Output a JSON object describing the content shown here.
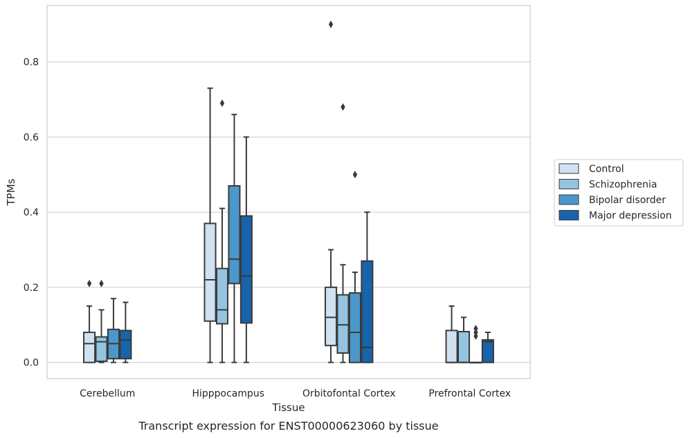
{
  "chart_data": {
    "type": "box",
    "title": "",
    "caption": "Transcript expression for ENST00000623060 by tissue",
    "xlabel": "Tissue",
    "ylabel": "TPMs",
    "ylim": [
      -0.043,
      0.95
    ],
    "yticks": [
      {
        "value": 0.0,
        "label": "0.0"
      },
      {
        "value": 0.2,
        "label": "0.2"
      },
      {
        "value": 0.4,
        "label": "0.4"
      },
      {
        "value": 0.6,
        "label": "0.6"
      },
      {
        "value": 0.8,
        "label": "0.8"
      }
    ],
    "grid": "horizontal",
    "legend_position": "right",
    "categories": [
      "Cerebellum",
      "Hipppocampus",
      "Orbitofontal Cortex",
      "Prefrontal Cortex"
    ],
    "series": [
      {
        "name": "Control",
        "color": "#d0e1f2",
        "boxes": [
          {
            "whislo": 0.0,
            "q1": 0.0,
            "med": 0.05,
            "q3": 0.08,
            "whishi": 0.15,
            "fliers": [
              0.21
            ]
          },
          {
            "whislo": 0.0,
            "q1": 0.11,
            "med": 0.22,
            "q3": 0.37,
            "whishi": 0.73,
            "fliers": []
          },
          {
            "whislo": 0.0,
            "q1": 0.045,
            "med": 0.12,
            "q3": 0.2,
            "whishi": 0.3,
            "fliers": [
              0.9
            ]
          },
          {
            "whislo": 0.0,
            "q1": 0.0,
            "med": 0.0,
            "q3": 0.085,
            "whishi": 0.15,
            "fliers": []
          }
        ]
      },
      {
        "name": "Schizophrenia",
        "color": "#94c4df",
        "boxes": [
          {
            "whislo": 0.0,
            "q1": 0.003,
            "med": 0.055,
            "q3": 0.068,
            "whishi": 0.14,
            "fliers": [
              0.21
            ]
          },
          {
            "whislo": 0.0,
            "q1": 0.103,
            "med": 0.14,
            "q3": 0.25,
            "whishi": 0.41,
            "fliers": [
              0.69
            ]
          },
          {
            "whislo": 0.0,
            "q1": 0.025,
            "med": 0.1,
            "q3": 0.18,
            "whishi": 0.26,
            "fliers": [
              0.68
            ]
          },
          {
            "whislo": 0.0,
            "q1": 0.0,
            "med": 0.0,
            "q3": 0.082,
            "whishi": 0.12,
            "fliers": []
          }
        ]
      },
      {
        "name": "Bipolar disorder",
        "color": "#4a98c9",
        "boxes": [
          {
            "whislo": 0.0,
            "q1": 0.01,
            "med": 0.05,
            "q3": 0.088,
            "whishi": 0.17,
            "fliers": []
          },
          {
            "whislo": 0.0,
            "q1": 0.21,
            "med": 0.275,
            "q3": 0.47,
            "whishi": 0.66,
            "fliers": []
          },
          {
            "whislo": 0.0,
            "q1": 0.0,
            "med": 0.08,
            "q3": 0.185,
            "whishi": 0.24,
            "fliers": [
              0.5
            ]
          },
          {
            "whislo": 0.0,
            "q1": 0.0,
            "med": 0.0,
            "q3": 0.0,
            "whishi": 0.0,
            "fliers": [
              0.07,
              0.08,
              0.09
            ]
          }
        ]
      },
      {
        "name": "Major depression",
        "color": "#1764ab",
        "boxes": [
          {
            "whislo": 0.0,
            "q1": 0.01,
            "med": 0.06,
            "q3": 0.085,
            "whishi": 0.16,
            "fliers": []
          },
          {
            "whislo": 0.0,
            "q1": 0.105,
            "med": 0.23,
            "q3": 0.39,
            "whishi": 0.6,
            "fliers": []
          },
          {
            "whislo": 0.0,
            "q1": 0.0,
            "med": 0.04,
            "q3": 0.27,
            "whishi": 0.4,
            "fliers": []
          },
          {
            "whislo": 0.0,
            "q1": 0.0,
            "med": 0.055,
            "q3": 0.06,
            "whishi": 0.08,
            "fliers": []
          }
        ]
      }
    ]
  }
}
